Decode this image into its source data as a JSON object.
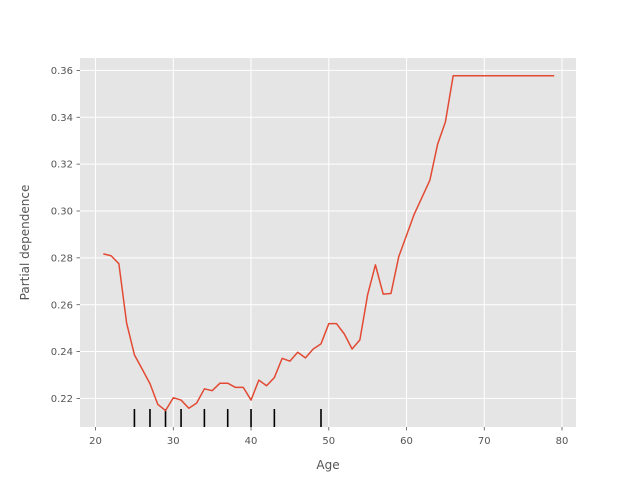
{
  "chart_data": {
    "type": "line",
    "title": "",
    "xlabel": "Age",
    "ylabel": "Partial dependence",
    "xlim": [
      18,
      81.8
    ],
    "ylim": [
      0.2078,
      0.3653
    ],
    "xticks": [
      20,
      30,
      40,
      50,
      60,
      70,
      80
    ],
    "xtick_labels": [
      "20",
      "30",
      "40",
      "50",
      "60",
      "70",
      "80"
    ],
    "yticks": [
      0.22,
      0.24,
      0.26,
      0.28,
      0.3,
      0.32,
      0.34,
      0.36
    ],
    "ytick_labels": [
      "0.22",
      "0.24",
      "0.26",
      "0.28",
      "0.30",
      "0.32",
      "0.34",
      "0.36"
    ],
    "grid": true,
    "style": "ggplot",
    "colors": {
      "line": "#E24A33",
      "background": "#E5E5E5",
      "grid": "#FFFFFF",
      "rug": "#000000"
    },
    "series": [
      {
        "x": [
          21,
          22,
          23,
          24,
          25,
          26,
          27,
          28,
          29,
          30,
          31,
          32,
          33,
          34,
          35,
          36,
          37,
          38,
          39,
          40,
          41,
          42,
          43,
          44,
          45,
          46,
          47,
          48,
          49,
          50,
          51,
          52,
          53,
          54,
          55,
          56,
          57,
          58,
          59,
          60,
          61,
          62,
          63,
          64,
          65,
          66,
          67,
          68,
          69,
          70,
          71,
          72,
          73,
          74,
          75,
          76,
          77,
          78,
          79
        ],
        "y": [
          0.2817,
          0.2809,
          0.2775,
          0.2521,
          0.2386,
          0.2325,
          0.2263,
          0.2175,
          0.2148,
          0.2203,
          0.2193,
          0.2158,
          0.218,
          0.2241,
          0.2233,
          0.2265,
          0.2265,
          0.2247,
          0.2247,
          0.2193,
          0.2278,
          0.2254,
          0.2289,
          0.2371,
          0.2359,
          0.2397,
          0.2373,
          0.2411,
          0.2433,
          0.2519,
          0.2519,
          0.2475,
          0.2411,
          0.245,
          0.2643,
          0.277,
          0.2645,
          0.2648,
          0.2805,
          0.2896,
          0.2987,
          0.3059,
          0.3131,
          0.3285,
          0.338,
          0.3577,
          0.3577,
          0.3577,
          0.3577,
          0.3577,
          0.3577,
          0.3577,
          0.3577,
          0.3577,
          0.3577,
          0.3577,
          0.3577,
          0.3577,
          0.3577
        ]
      }
    ],
    "deciles": [
      25,
      27,
      29,
      31,
      34,
      37,
      40,
      43,
      49
    ]
  }
}
